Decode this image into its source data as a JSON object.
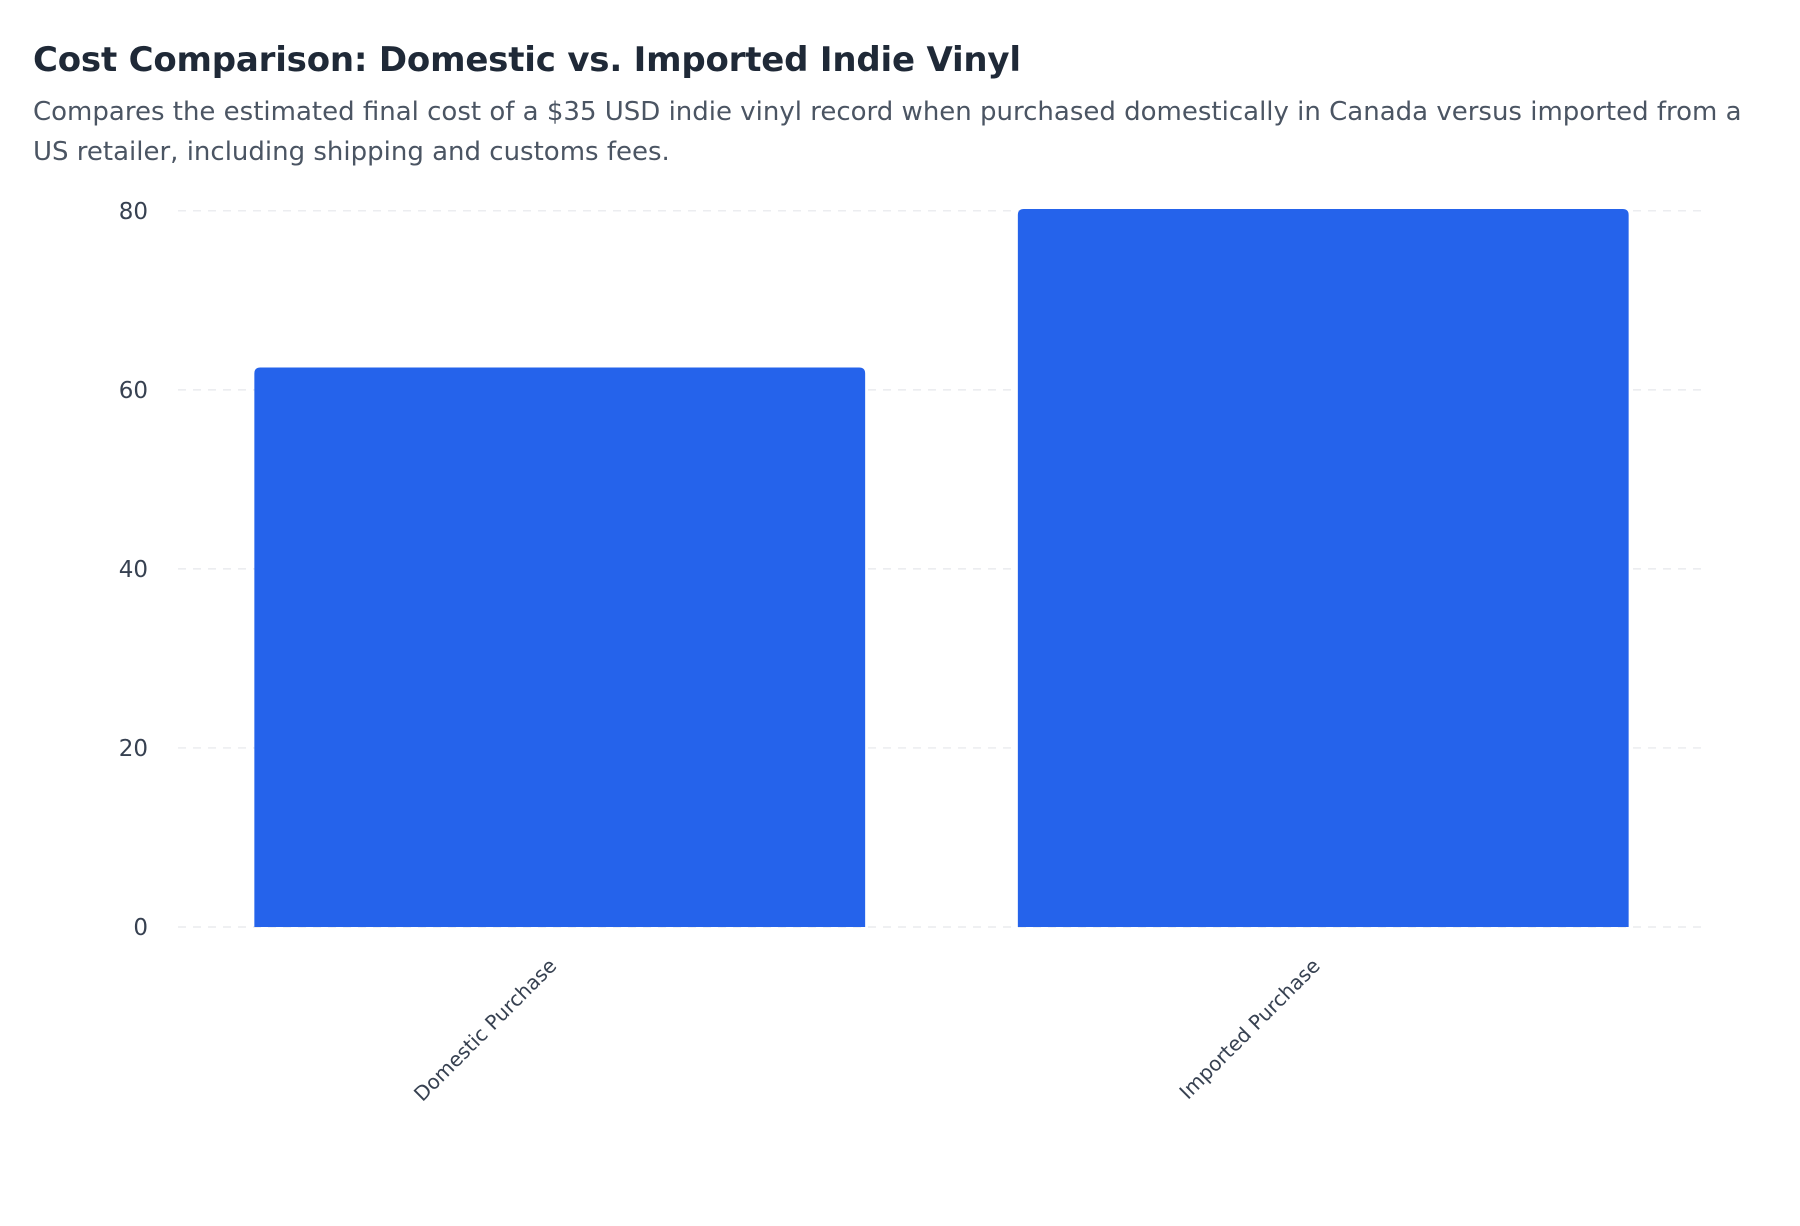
{
  "chart_data": {
    "type": "bar",
    "title": "Cost Comparison: Domestic vs. Imported Indie Vinyl",
    "subtitle": "Compares the estimated final cost of a $35 USD indie vinyl record when purchased domestically in Canada versus imported from a US retailer, including shipping and customs fees.",
    "categories": [
      "Domestic Purchase",
      "Imported Purchase"
    ],
    "values": [
      62.5,
      80.2
    ],
    "ylim": [
      0,
      80.2
    ],
    "yticks": [
      0,
      20,
      40,
      60,
      80
    ],
    "xlabel": "",
    "ylabel": "",
    "grid": true,
    "legend": "none",
    "colors": {
      "bar": "#2563eb",
      "grid": "#e5e7eb",
      "tick_text": "#374151",
      "category_text": "#374151"
    }
  }
}
